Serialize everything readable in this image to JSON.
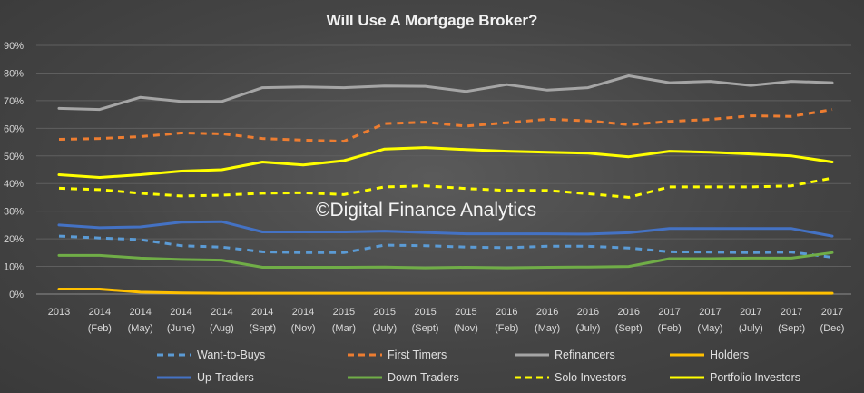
{
  "chart_data": {
    "type": "line",
    "title": "Will Use A Mortgage Broker?",
    "watermark": "©Digital Finance Analytics",
    "ylim": [
      0,
      90
    ],
    "yticks": [
      "0%",
      "10%",
      "20%",
      "30%",
      "40%",
      "50%",
      "60%",
      "70%",
      "80%",
      "90%"
    ],
    "categories": [
      [
        "2013"
      ],
      [
        "2014",
        "(Feb)"
      ],
      [
        "2014",
        "(May)"
      ],
      [
        "2014",
        "(June)"
      ],
      [
        "2014",
        "(Aug)"
      ],
      [
        "2014",
        "(Sept)"
      ],
      [
        "2014",
        "(Nov)"
      ],
      [
        "2015",
        "(Mar)"
      ],
      [
        "2015",
        "(July)"
      ],
      [
        "2015",
        "(Sept)"
      ],
      [
        "2015",
        "(Nov)"
      ],
      [
        "2016",
        "(Feb)"
      ],
      [
        "2016",
        "(May)"
      ],
      [
        "2016",
        "(July)"
      ],
      [
        "2016",
        "(Sept)"
      ],
      [
        "2017",
        "(Feb)"
      ],
      [
        "2017",
        "(May)"
      ],
      [
        "2017",
        "(July)"
      ],
      [
        "2017",
        "(Sept)"
      ],
      [
        "2017",
        "(Dec)"
      ]
    ],
    "grid": true,
    "legend_position": "bottom",
    "series": [
      {
        "name": "Want-to-Buys",
        "color": "#5b9bd5",
        "dashed": true,
        "values": [
          21,
          20.3,
          19.7,
          17.5,
          17,
          15.3,
          15,
          15,
          17.7,
          17.5,
          17,
          16.8,
          17.3,
          17.3,
          16.7,
          15.3,
          15.2,
          15,
          15.2,
          13.3
        ]
      },
      {
        "name": "First Timers",
        "color": "#ed7d31",
        "dashed": true,
        "values": [
          56,
          56.3,
          57,
          58.3,
          58,
          56.3,
          55.7,
          55.3,
          61.7,
          62.2,
          60.8,
          62,
          63.3,
          62.7,
          61.3,
          62.5,
          63.2,
          64.5,
          64.3,
          66.8
        ]
      },
      {
        "name": "Refinancers",
        "color": "#a5a5a5",
        "dashed": false,
        "values": [
          67.2,
          66.8,
          71.2,
          69.7,
          69.7,
          74.7,
          75,
          74.7,
          75.3,
          75.2,
          73.3,
          75.8,
          73.8,
          74.7,
          79,
          76.5,
          77,
          75.5,
          77,
          76.5
        ]
      },
      {
        "name": "Holders",
        "color": "#ffc000",
        "dashed": false,
        "values": [
          1.8,
          1.8,
          0.7,
          0.4,
          0.3,
          0.3,
          0.3,
          0.3,
          0.3,
          0.3,
          0.3,
          0.3,
          0.3,
          0.3,
          0.3,
          0.3,
          0.3,
          0.3,
          0.3,
          0.3
        ]
      },
      {
        "name": "Up-Traders",
        "color": "#4472c4",
        "dashed": false,
        "values": [
          25,
          24,
          24.3,
          26,
          26.2,
          22.5,
          22.5,
          22.5,
          22.8,
          22.3,
          21.8,
          21.8,
          21.8,
          21.7,
          22.2,
          23.7,
          23.7,
          23.7,
          23.7,
          21
        ]
      },
      {
        "name": "Down-Traders",
        "color": "#70ad47",
        "dashed": false,
        "values": [
          14,
          14,
          13,
          12.5,
          12.3,
          9.7,
          9.7,
          9.7,
          9.8,
          9.5,
          9.7,
          9.5,
          9.7,
          9.8,
          10,
          12.8,
          12.8,
          13,
          13,
          15
        ]
      },
      {
        "name": "Solo Investors",
        "color": "#ffff00",
        "dashed": true,
        "values": [
          38.3,
          37.8,
          36.5,
          35.5,
          35.8,
          36.5,
          36.7,
          36,
          38.8,
          39.2,
          38.2,
          37.5,
          37.5,
          36.3,
          35,
          38.8,
          38.8,
          38.8,
          39.2,
          42
        ]
      },
      {
        "name": "Portfolio Investors",
        "color": "#ffff00",
        "dashed": false,
        "values": [
          43.2,
          42.2,
          43.2,
          44.5,
          45,
          47.8,
          46.7,
          48.3,
          52.5,
          53,
          52.3,
          51.7,
          51.3,
          51,
          49.7,
          51.7,
          51.3,
          50.7,
          50,
          47.8
        ]
      }
    ]
  }
}
